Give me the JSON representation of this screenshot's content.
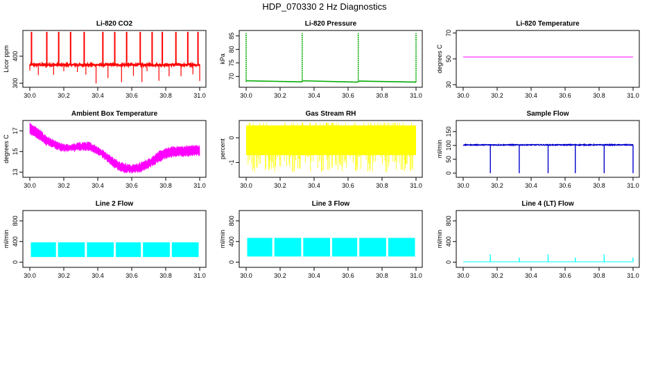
{
  "figure": {
    "title": "HDP_070330  2 Hz Diagnostics"
  },
  "chart_data": [
    {
      "id": "co2",
      "type": "line",
      "title": "Li-820 CO2",
      "xlabel": "",
      "ylabel": "Licor ppm",
      "xlim": [
        30.0,
        31.0
      ],
      "ylim": [
        285,
        495
      ],
      "xticks": [
        "30.0",
        "30.2",
        "30.4",
        "30.6",
        "30.8",
        "31.0"
      ],
      "yticks": [
        "300",
        "400"
      ],
      "ytick_values": [
        300,
        400
      ],
      "color": "#ff0000",
      "series": [
        {
          "baseline": 368,
          "noise": 4,
          "spikes_up": [
            30.01,
            30.1,
            30.17,
            30.24,
            30.32,
            30.43,
            30.5,
            30.57,
            30.65,
            30.72,
            30.78,
            30.86,
            30.93,
            30.99
          ],
          "spike_top": 490,
          "dips": [
            30.0,
            30.05,
            30.14,
            30.2,
            30.28,
            30.33,
            30.39,
            30.46,
            30.54,
            30.61,
            30.66,
            30.69,
            30.76,
            30.82,
            30.89,
            30.96,
            31.0
          ],
          "dip_bottom": 300
        }
      ]
    },
    {
      "id": "pressure",
      "type": "line",
      "title": "Li-820 Pressure",
      "xlabel": "",
      "ylabel": "kPa",
      "xlim": [
        30.0,
        31.0
      ],
      "ylim": [
        66,
        87
      ],
      "xticks": [
        "30.0",
        "30.2",
        "30.4",
        "30.6",
        "30.8",
        "31.0"
      ],
      "yticks": [
        "70",
        "75",
        "80",
        "85"
      ],
      "ytick_values": [
        70,
        75,
        80,
        85
      ],
      "color": "#00aa00",
      "series": [
        {
          "segments": [
            {
              "x": [
                30.0,
                30.33
              ],
              "start": 68.4,
              "end": 68.0
            },
            {
              "x": [
                30.33,
                30.66
              ],
              "start": 68.4,
              "end": 67.9
            },
            {
              "x": [
                30.66,
                31.0
              ],
              "start": 68.3,
              "end": 67.9
            }
          ],
          "spikes": [
            30.0,
            30.33,
            30.66,
            31.0
          ],
          "spike_top": 86
        }
      ]
    },
    {
      "id": "temp",
      "type": "line",
      "title": "Li-820 Temperature",
      "xlabel": "",
      "ylabel": "degrees C",
      "xlim": [
        30.0,
        31.0
      ],
      "ylim": [
        28,
        72
      ],
      "xticks": [
        "30.0",
        "30.2",
        "30.4",
        "30.6",
        "30.8",
        "31.0"
      ],
      "yticks": [
        "30",
        "50",
        "70"
      ],
      "ytick_values": [
        30,
        50,
        70
      ],
      "color": "#ff00ff",
      "series": [
        {
          "x": [
            30.0,
            31.0
          ],
          "values": [
            51.5,
            51.5
          ]
        }
      ]
    },
    {
      "id": "ambient",
      "type": "area",
      "title": "Ambient Box Temperature",
      "xlabel": "",
      "ylabel": "degrees C",
      "xlim": [
        30.0,
        31.0
      ],
      "ylim": [
        12.5,
        18.0
      ],
      "xticks": [
        "30.0",
        "30.2",
        "30.4",
        "30.6",
        "30.8",
        "31.0"
      ],
      "yticks": [
        "13",
        "15",
        "17"
      ],
      "ytick_values": [
        13,
        15,
        17
      ],
      "color": "#ff00ff",
      "series": [
        {
          "x": [
            30.0,
            30.05,
            30.1,
            30.15,
            30.2,
            30.25,
            30.3,
            30.35,
            30.4,
            30.45,
            30.5,
            30.55,
            30.6,
            30.65,
            30.7,
            30.75,
            30.8,
            30.85,
            30.9,
            30.95,
            31.0
          ],
          "lower": [
            16.8,
            16.3,
            15.7,
            15.3,
            15.1,
            15.1,
            15.2,
            15.2,
            14.8,
            14.2,
            13.5,
            13.1,
            13.0,
            13.1,
            13.5,
            14.0,
            14.4,
            14.6,
            14.6,
            14.7,
            14.7
          ],
          "upper": [
            17.7,
            17.1,
            16.4,
            15.9,
            15.6,
            15.6,
            15.8,
            15.8,
            15.4,
            14.8,
            14.2,
            13.8,
            13.6,
            13.8,
            14.2,
            14.8,
            15.2,
            15.4,
            15.4,
            15.5,
            15.5
          ]
        }
      ]
    },
    {
      "id": "rh",
      "type": "area",
      "title": "Gas Stream RH",
      "xlabel": "",
      "ylabel": "percent",
      "xlim": [
        30.0,
        31.0
      ],
      "ylim": [
        -1.6,
        0.7
      ],
      "xticks": [
        "30.0",
        "30.2",
        "30.4",
        "30.6",
        "30.8",
        "31.0"
      ],
      "yticks": [
        "-1",
        "0"
      ],
      "ytick_values": [
        -1,
        0
      ],
      "color": "#ffff00",
      "series": [
        {
          "upper": 0.5,
          "lower": -0.7,
          "outlier_low": -1.4
        }
      ]
    },
    {
      "id": "sample",
      "type": "line",
      "title": "Sample Flow",
      "xlabel": "",
      "ylabel": "ml/min",
      "xlim": [
        30.0,
        31.0
      ],
      "ylim": [
        -15,
        190
      ],
      "xticks": [
        "30.0",
        "30.2",
        "30.4",
        "30.6",
        "30.8",
        "31.0"
      ],
      "yticks": [
        "0",
        "50",
        "100",
        "150"
      ],
      "ytick_values": [
        0,
        50,
        100,
        150
      ],
      "color": "#0000cc",
      "series": [
        {
          "baseline": 102,
          "dips": [
            30.16,
            30.33,
            30.5,
            30.66,
            30.83,
            31.0
          ],
          "dip_bottom": 0
        }
      ]
    },
    {
      "id": "line2",
      "type": "area",
      "title": "Line 2 Flow",
      "xlabel": "",
      "ylabel": "ml/min",
      "xlim": [
        30.0,
        31.0
      ],
      "ylim": [
        -100,
        1000
      ],
      "xticks": [
        "30.0",
        "30.2",
        "30.4",
        "30.6",
        "30.8",
        "31.0"
      ],
      "yticks": [
        "0",
        "400",
        "800"
      ],
      "ytick_values": [
        0,
        400,
        800
      ],
      "color": "#00ffff",
      "series": [
        {
          "upper": 385,
          "lower": 100,
          "gaps": [
            30.16,
            30.33,
            30.5,
            30.66,
            30.83,
            31.0
          ]
        }
      ]
    },
    {
      "id": "line3",
      "type": "area",
      "title": "Line 3 Flow",
      "xlabel": "",
      "ylabel": "ml/min",
      "xlim": [
        30.0,
        31.0
      ],
      "ylim": [
        -100,
        1000
      ],
      "xticks": [
        "30.0",
        "30.2",
        "30.4",
        "30.6",
        "30.8",
        "31.0"
      ],
      "yticks": [
        "0",
        "400",
        "800"
      ],
      "ytick_values": [
        0,
        400,
        800
      ],
      "color": "#00ffff",
      "series": [
        {
          "upper": 470,
          "lower": 110,
          "gaps": [
            30.16,
            30.33,
            30.5,
            30.66,
            30.83,
            31.0
          ]
        }
      ]
    },
    {
      "id": "line4",
      "type": "line",
      "title": "Line 4 (LT) Flow",
      "xlabel": "",
      "ylabel": "ml/min",
      "xlim": [
        30.0,
        31.0
      ],
      "ylim": [
        -100,
        1000
      ],
      "xticks": [
        "30.0",
        "30.2",
        "30.4",
        "30.6",
        "30.8",
        "31.0"
      ],
      "yticks": [
        "0",
        "400",
        "800"
      ],
      "ytick_values": [
        0,
        400,
        800
      ],
      "color": "#00ffff",
      "series": [
        {
          "baseline": 8,
          "spikes": [
            30.16,
            30.33,
            30.5,
            30.66,
            30.83,
            31.0
          ],
          "spike_heights": [
            150,
            90,
            150,
            90,
            150,
            90
          ]
        }
      ]
    }
  ]
}
